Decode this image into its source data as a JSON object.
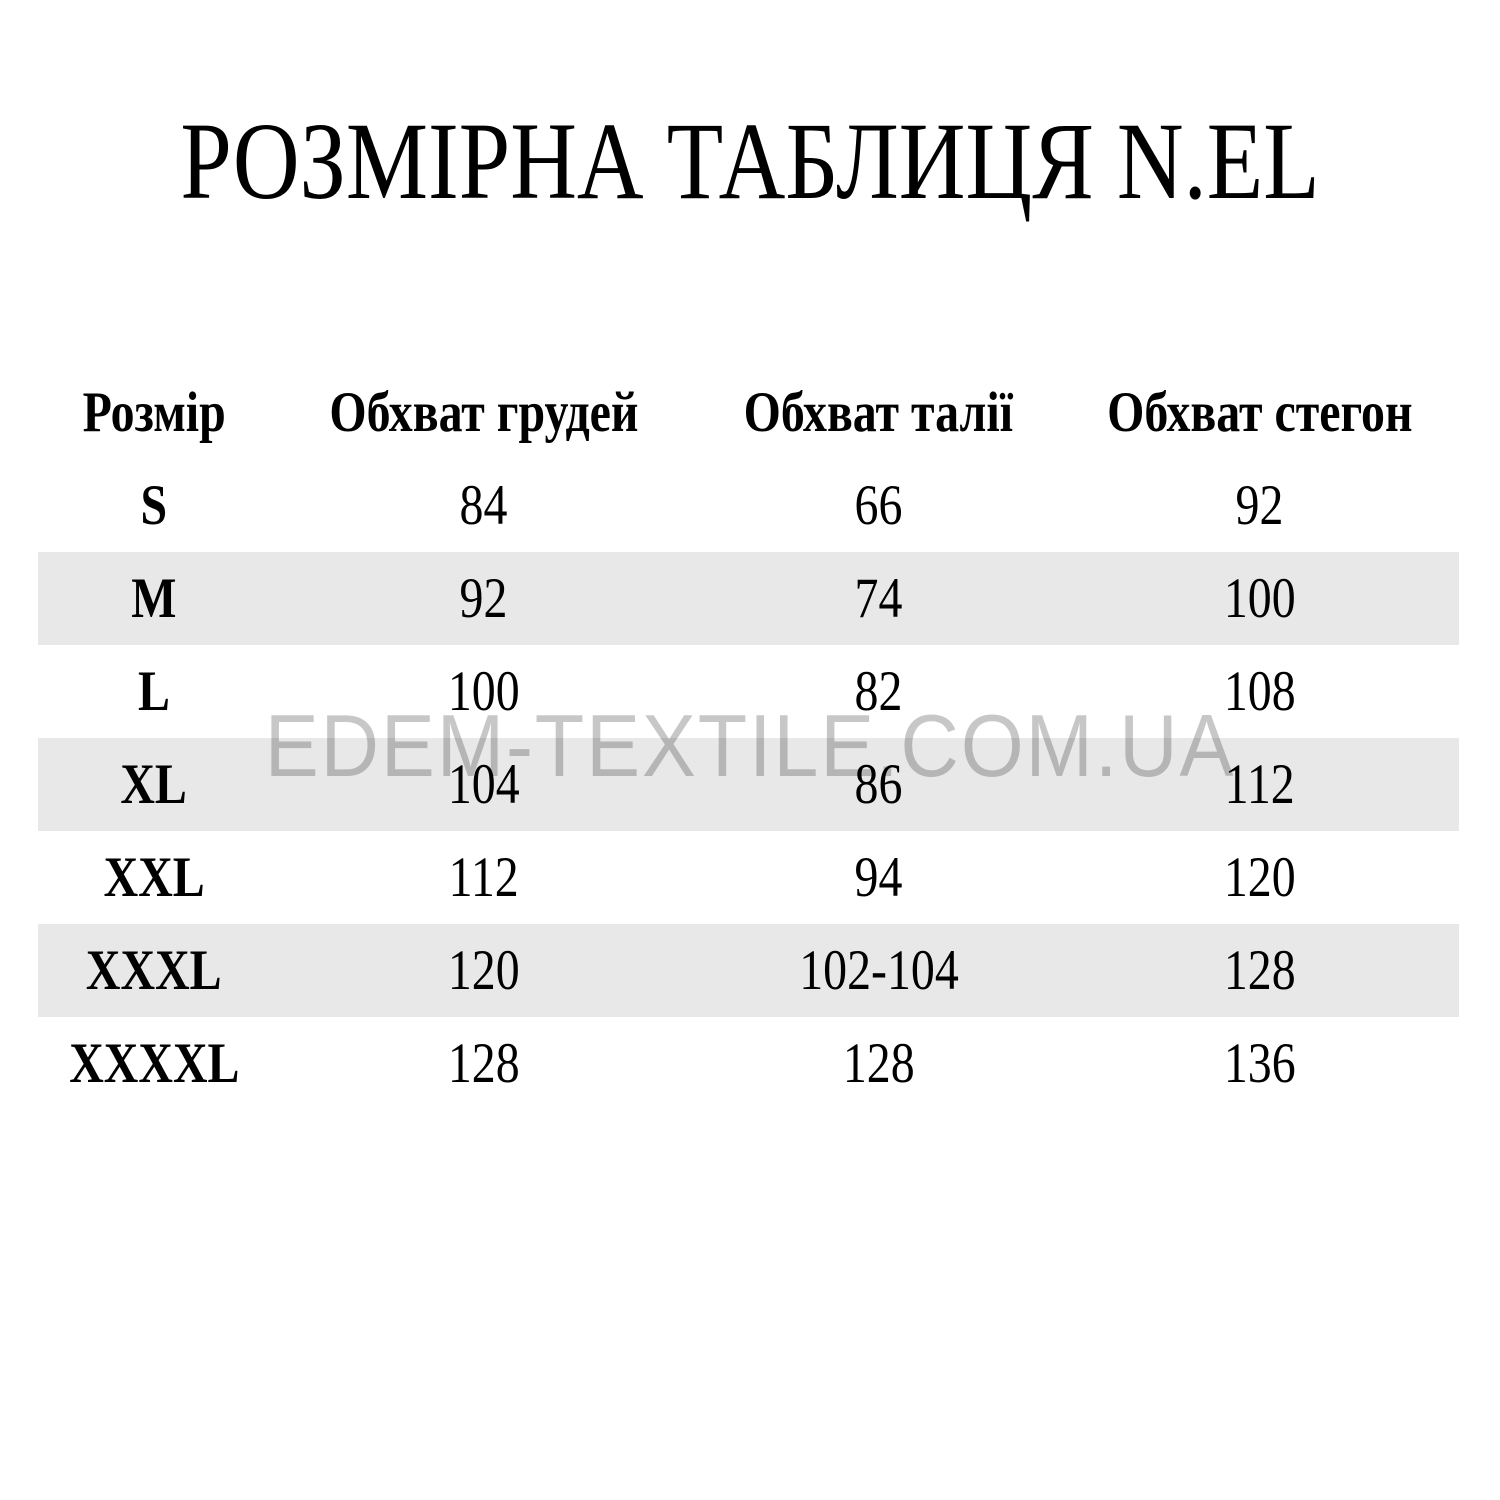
{
  "chart_data": {
    "type": "table",
    "title": "РОЗМІРНА ТАБЛИЦЯ N.EL",
    "columns": [
      "Розмір",
      "Обхват грудей",
      "Обхват талії",
      "Обхват стегон"
    ],
    "rows": [
      [
        "S",
        "84",
        "66",
        "92"
      ],
      [
        "M",
        "92",
        "74",
        "100"
      ],
      [
        "L",
        "100",
        "82",
        "108"
      ],
      [
        "XL",
        "104",
        "86",
        "112"
      ],
      [
        "XXL",
        "112",
        "94",
        "120"
      ],
      [
        "XXXL",
        "120",
        "102-104",
        "128"
      ],
      [
        "XXXXL",
        "128",
        "128",
        "136"
      ]
    ],
    "striped_row_sizes": [
      "M",
      "XL",
      "XXXL"
    ],
    "layout_hints": {
      "grid": "off",
      "stripe_style": "every second data row shaded"
    }
  },
  "watermark": {
    "text": "EDEM-TEXTILE.COM.UA"
  },
  "colors": {
    "background": "#ffffff",
    "text": "#000000",
    "row_stripe": "#e8e8e8",
    "watermark_text": "#c7c7c7"
  }
}
